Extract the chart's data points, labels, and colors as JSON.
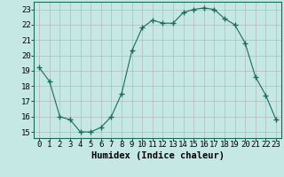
{
  "x": [
    0,
    1,
    2,
    3,
    4,
    5,
    6,
    7,
    8,
    9,
    10,
    11,
    12,
    13,
    14,
    15,
    16,
    17,
    18,
    19,
    20,
    21,
    22,
    23
  ],
  "y": [
    19.2,
    18.3,
    16.0,
    15.8,
    15.0,
    15.0,
    15.3,
    16.0,
    17.5,
    20.3,
    21.8,
    22.3,
    22.1,
    22.1,
    22.8,
    23.0,
    23.1,
    23.0,
    22.4,
    22.0,
    20.8,
    18.6,
    17.4,
    15.8
  ],
  "line_color": "#1a6b5a",
  "marker": "+",
  "marker_size": 4,
  "bg_color": "#c5e8e5",
  "grid_color_major": "#b0b0b0",
  "grid_color_minor": "#d0d0d0",
  "xlabel": "Humidex (Indice chaleur)",
  "ylabel_ticks": [
    15,
    16,
    17,
    18,
    19,
    20,
    21,
    22,
    23
  ],
  "xlim": [
    -0.5,
    23.5
  ],
  "ylim": [
    14.6,
    23.5
  ],
  "xlabel_fontsize": 7.5,
  "tick_fontsize": 6.5
}
